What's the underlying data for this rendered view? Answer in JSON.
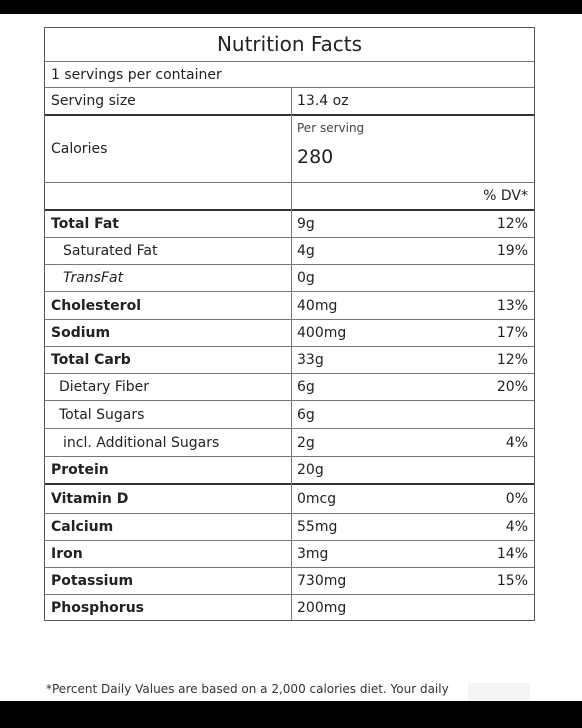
{
  "title": "Nutrition Facts",
  "servings_per_container": "1 servings per container",
  "serving_size": {
    "label": "Serving size",
    "value": "13.4 oz"
  },
  "calories": {
    "label": "Calories",
    "per_serving_label": "Per serving",
    "value": "280"
  },
  "dv_header": "% DV*",
  "nutrients": [
    {
      "name": "Total Fat",
      "amount": "9g",
      "dv": "12%"
    },
    {
      "name": "Saturated Fat",
      "amount": "4g",
      "dv": "19%"
    },
    {
      "name": "TransFat",
      "amount": "0g",
      "dv": ""
    },
    {
      "name": "Cholesterol",
      "amount": "40mg",
      "dv": "13%"
    },
    {
      "name": "Sodium",
      "amount": "400mg",
      "dv": "17%"
    },
    {
      "name": "Total Carb",
      "amount": "33g",
      "dv": "12%"
    },
    {
      "name": "Dietary Fiber",
      "amount": "6g",
      "dv": "20%"
    },
    {
      "name": "Total Sugars",
      "amount": "6g",
      "dv": ""
    },
    {
      "name": "incl. Additional Sugars",
      "amount": "2g",
      "dv": "4%"
    },
    {
      "name": "Protein",
      "amount": "20g",
      "dv": ""
    }
  ],
  "vitamins": [
    {
      "name": "Vitamin D",
      "amount": "0mcg",
      "dv": "0%"
    },
    {
      "name": "Calcium",
      "amount": "55mg",
      "dv": "4%"
    },
    {
      "name": "Iron",
      "amount": "3mg",
      "dv": "14%"
    },
    {
      "name": "Potassium",
      "amount": "730mg",
      "dv": "15%"
    },
    {
      "name": "Phosphorus",
      "amount": "200mg",
      "dv": ""
    }
  ],
  "footnote": "*Percent Daily Values are based on a 2,000 calories diet. Your daily"
}
